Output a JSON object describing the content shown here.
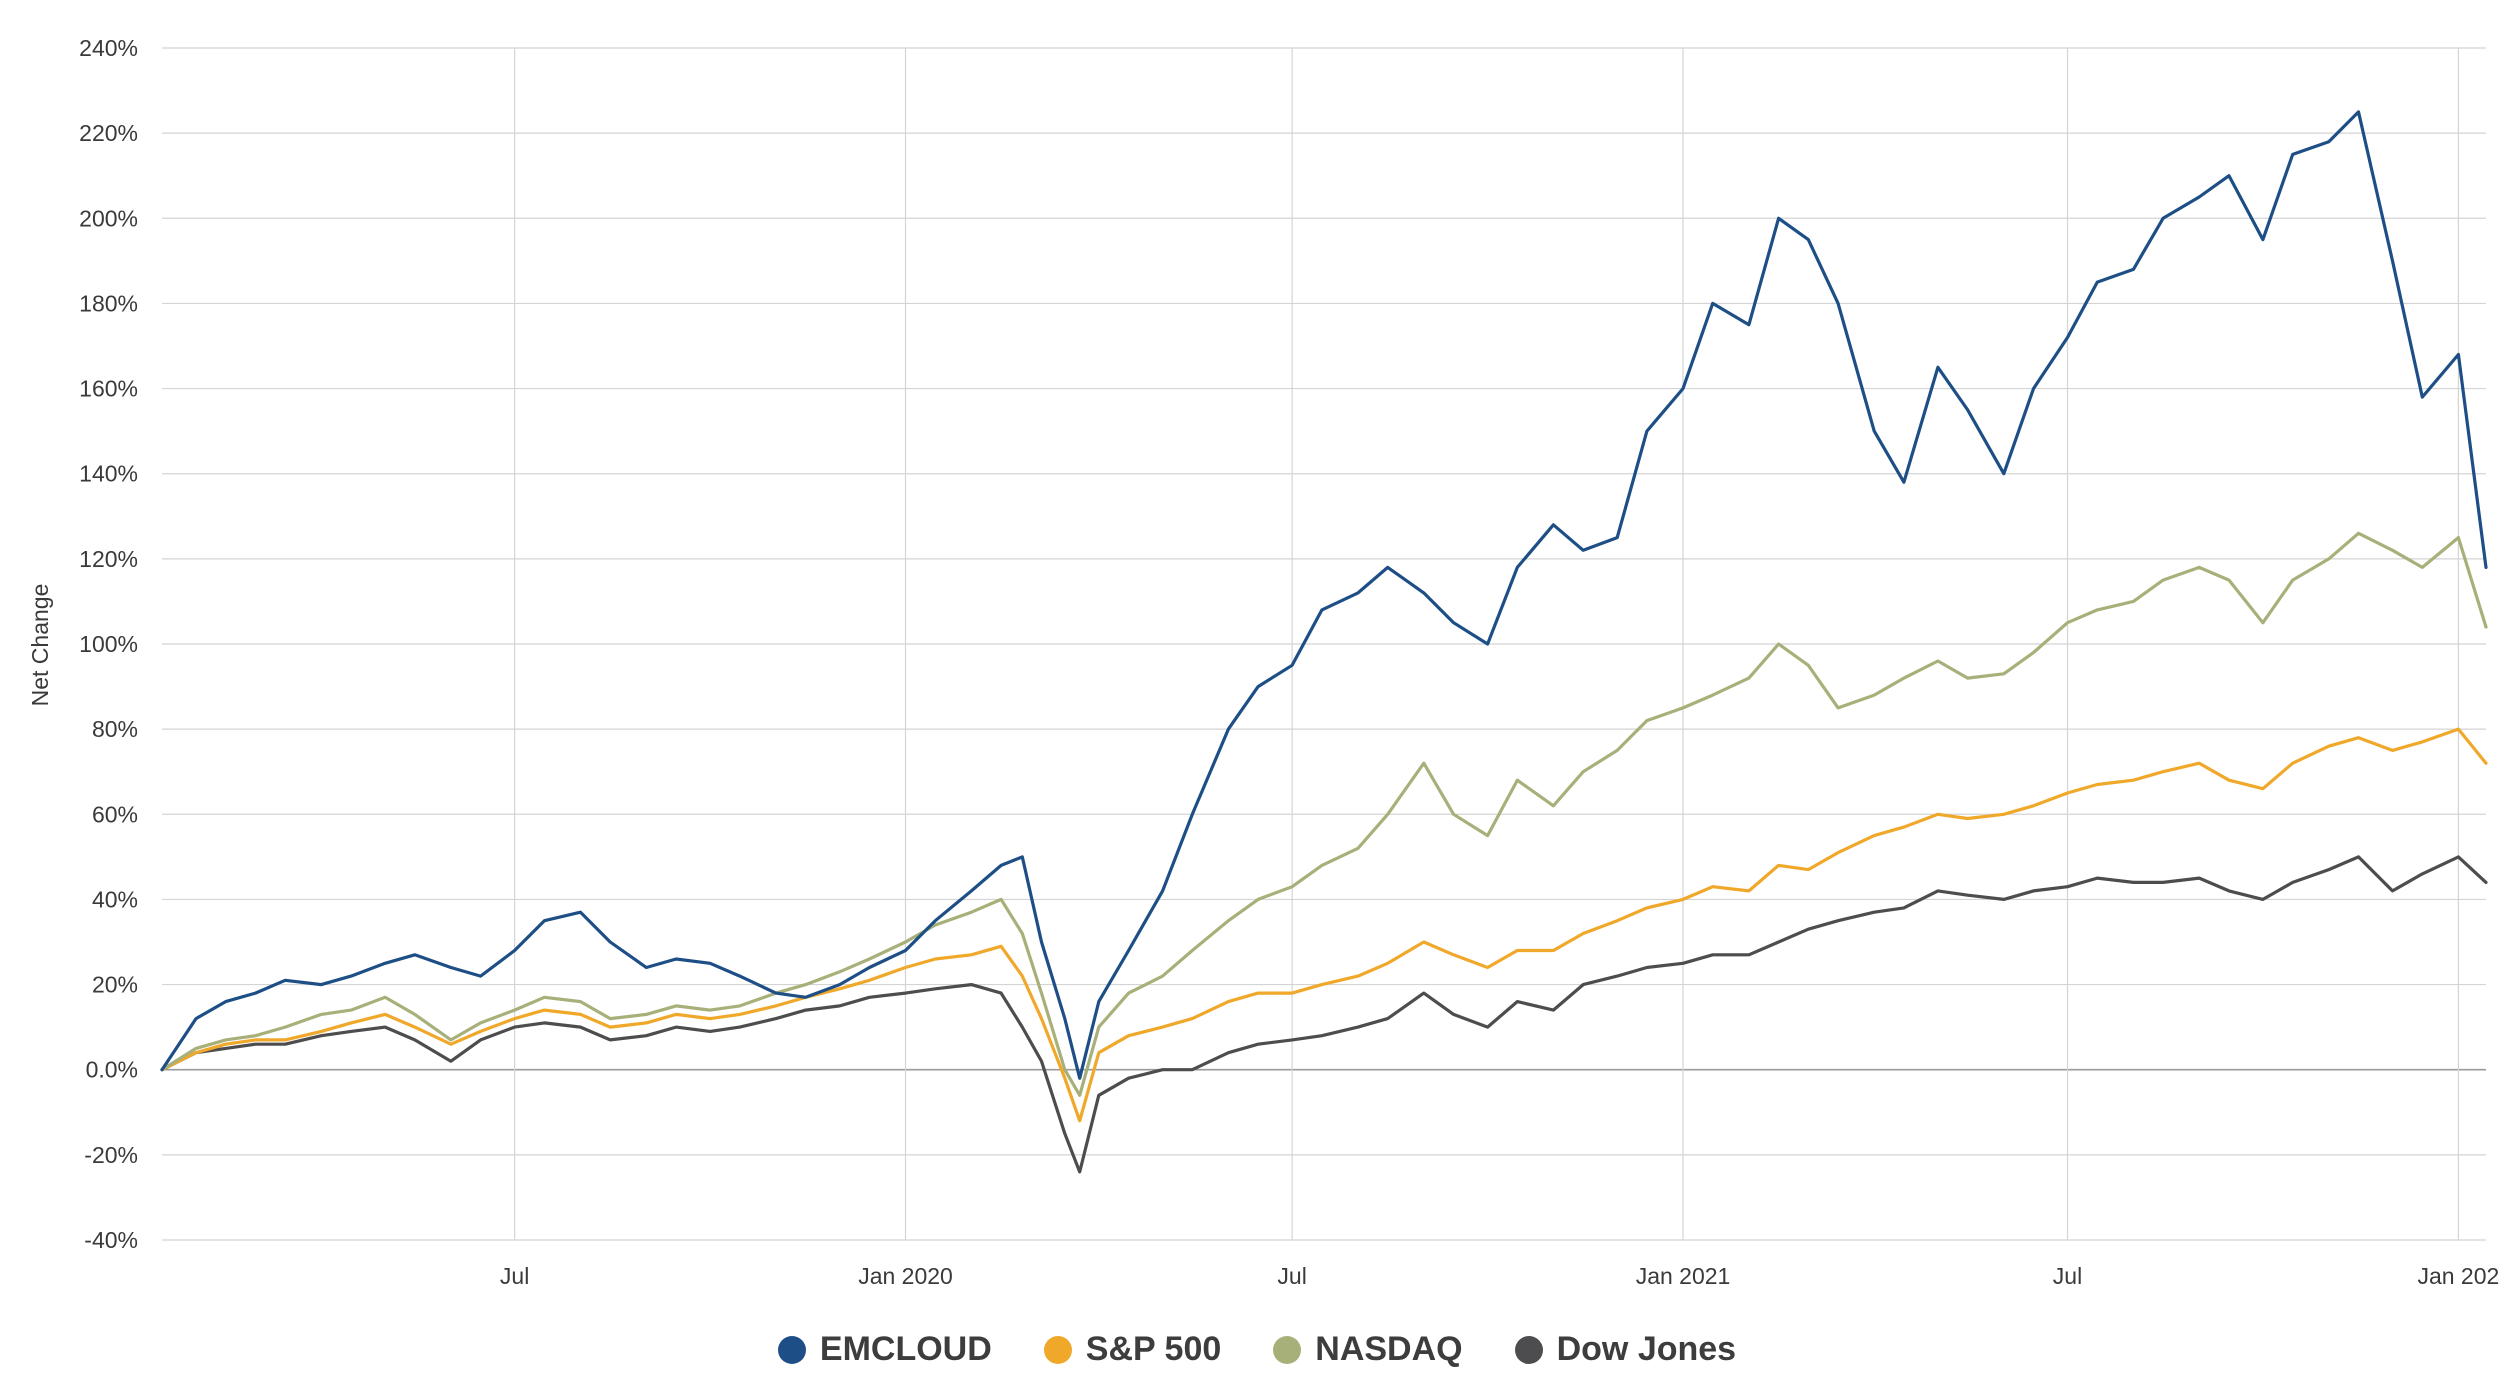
{
  "chart_data": {
    "type": "line",
    "ylabel": "Net Change",
    "xlabel": "",
    "ylim": [
      -40,
      240
    ],
    "y_ticks": [
      "240%",
      "220%",
      "200%",
      "180%",
      "160%",
      "140%",
      "120%",
      "100%",
      "80%",
      "60%",
      "40%",
      "20%",
      "0.0%",
      "-20%",
      "-40%"
    ],
    "x_ticks": [
      "Jul",
      "Jan 2020",
      "Jul",
      "Jan 2021",
      "Jul",
      "Jan 202"
    ],
    "x_tick_dates": [
      "2019-07-01",
      "2020-01-01",
      "2020-07-01",
      "2021-01-01",
      "2021-07-01",
      "2022-01-01"
    ],
    "x_range": [
      "2019-01-16",
      "2022-01-14"
    ],
    "grid": true,
    "legend_position": "bottom",
    "series": [
      {
        "name": "EMCLOUD",
        "color": "#1d4f86",
        "x": [
          "2019-01-16",
          "2019-02-01",
          "2019-02-15",
          "2019-03-01",
          "2019-03-15",
          "2019-04-01",
          "2019-04-15",
          "2019-05-01",
          "2019-05-15",
          "2019-06-01",
          "2019-06-15",
          "2019-07-01",
          "2019-07-15",
          "2019-08-01",
          "2019-08-15",
          "2019-09-01",
          "2019-09-15",
          "2019-10-01",
          "2019-10-15",
          "2019-11-01",
          "2019-11-15",
          "2019-12-01",
          "2019-12-15",
          "2020-01-01",
          "2020-01-15",
          "2020-02-01",
          "2020-02-15",
          "2020-02-25",
          "2020-03-05",
          "2020-03-16",
          "2020-03-23",
          "2020-04-01",
          "2020-04-15",
          "2020-05-01",
          "2020-05-15",
          "2020-06-01",
          "2020-06-15",
          "2020-07-01",
          "2020-07-15",
          "2020-08-01",
          "2020-08-15",
          "2020-09-01",
          "2020-09-15",
          "2020-10-01",
          "2020-10-15",
          "2020-11-01",
          "2020-11-15",
          "2020-12-01",
          "2020-12-15",
          "2021-01-01",
          "2021-01-15",
          "2021-02-01",
          "2021-02-15",
          "2021-03-01",
          "2021-03-15",
          "2021-04-01",
          "2021-04-15",
          "2021-05-01",
          "2021-05-15",
          "2021-06-01",
          "2021-06-15",
          "2021-07-01",
          "2021-07-15",
          "2021-08-01",
          "2021-08-15",
          "2021-09-01",
          "2021-09-15",
          "2021-10-01",
          "2021-10-15",
          "2021-11-01",
          "2021-11-15",
          "2021-12-01",
          "2021-12-15",
          "2022-01-01",
          "2022-01-14"
        ],
        "values": [
          0,
          12,
          16,
          18,
          21,
          20,
          22,
          25,
          27,
          24,
          22,
          28,
          35,
          37,
          30,
          24,
          26,
          25,
          22,
          18,
          17,
          20,
          24,
          28,
          35,
          42,
          48,
          50,
          30,
          12,
          -2,
          16,
          28,
          42,
          60,
          80,
          90,
          95,
          108,
          112,
          118,
          112,
          105,
          100,
          118,
          128,
          122,
          125,
          150,
          160,
          180,
          175,
          200,
          195,
          180,
          150,
          138,
          165,
          155,
          140,
          160,
          172,
          185,
          188,
          200,
          205,
          210,
          195,
          215,
          218,
          225,
          190,
          158,
          168,
          118
        ]
      },
      {
        "name": "S&P 500",
        "color": "#f0a82a",
        "x": [
          "2019-01-16",
          "2019-02-01",
          "2019-02-15",
          "2019-03-01",
          "2019-03-15",
          "2019-04-01",
          "2019-04-15",
          "2019-05-01",
          "2019-05-15",
          "2019-06-01",
          "2019-06-15",
          "2019-07-01",
          "2019-07-15",
          "2019-08-01",
          "2019-08-15",
          "2019-09-01",
          "2019-09-15",
          "2019-10-01",
          "2019-10-15",
          "2019-11-01",
          "2019-11-15",
          "2019-12-01",
          "2019-12-15",
          "2020-01-01",
          "2020-01-15",
          "2020-02-01",
          "2020-02-15",
          "2020-02-25",
          "2020-03-05",
          "2020-03-16",
          "2020-03-23",
          "2020-04-01",
          "2020-04-15",
          "2020-05-01",
          "2020-05-15",
          "2020-06-01",
          "2020-06-15",
          "2020-07-01",
          "2020-07-15",
          "2020-08-01",
          "2020-08-15",
          "2020-09-01",
          "2020-09-15",
          "2020-10-01",
          "2020-10-15",
          "2020-11-01",
          "2020-11-15",
          "2020-12-01",
          "2020-12-15",
          "2021-01-01",
          "2021-01-15",
          "2021-02-01",
          "2021-02-15",
          "2021-03-01",
          "2021-03-15",
          "2021-04-01",
          "2021-04-15",
          "2021-05-01",
          "2021-05-15",
          "2021-06-01",
          "2021-06-15",
          "2021-07-01",
          "2021-07-15",
          "2021-08-01",
          "2021-08-15",
          "2021-09-01",
          "2021-09-15",
          "2021-10-01",
          "2021-10-15",
          "2021-11-01",
          "2021-11-15",
          "2021-12-01",
          "2021-12-15",
          "2022-01-01",
          "2022-01-14"
        ],
        "values": [
          0,
          4,
          6,
          7,
          7,
          9,
          11,
          13,
          10,
          6,
          9,
          12,
          14,
          13,
          10,
          11,
          13,
          12,
          13,
          15,
          17,
          19,
          21,
          24,
          26,
          27,
          29,
          22,
          12,
          -2,
          -12,
          4,
          8,
          10,
          12,
          16,
          18,
          18,
          20,
          22,
          25,
          30,
          27,
          24,
          28,
          28,
          32,
          35,
          38,
          40,
          43,
          42,
          48,
          47,
          51,
          55,
          57,
          60,
          59,
          60,
          62,
          65,
          67,
          68,
          70,
          72,
          68,
          66,
          72,
          76,
          78,
          75,
          77,
          80,
          72
        ]
      },
      {
        "name": "NASDAQ",
        "color": "#a8b07a",
        "x": [
          "2019-01-16",
          "2019-02-01",
          "2019-02-15",
          "2019-03-01",
          "2019-03-15",
          "2019-04-01",
          "2019-04-15",
          "2019-05-01",
          "2019-05-15",
          "2019-06-01",
          "2019-06-15",
          "2019-07-01",
          "2019-07-15",
          "2019-08-01",
          "2019-08-15",
          "2019-09-01",
          "2019-09-15",
          "2019-10-01",
          "2019-10-15",
          "2019-11-01",
          "2019-11-15",
          "2019-12-01",
          "2019-12-15",
          "2020-01-01",
          "2020-01-15",
          "2020-02-01",
          "2020-02-15",
          "2020-02-25",
          "2020-03-05",
          "2020-03-16",
          "2020-03-23",
          "2020-04-01",
          "2020-04-15",
          "2020-05-01",
          "2020-05-15",
          "2020-06-01",
          "2020-06-15",
          "2020-07-01",
          "2020-07-15",
          "2020-08-01",
          "2020-08-15",
          "2020-09-01",
          "2020-09-15",
          "2020-10-01",
          "2020-10-15",
          "2020-11-01",
          "2020-11-15",
          "2020-12-01",
          "2020-12-15",
          "2021-01-01",
          "2021-01-15",
          "2021-02-01",
          "2021-02-15",
          "2021-03-01",
          "2021-03-15",
          "2021-04-01",
          "2021-04-15",
          "2021-05-01",
          "2021-05-15",
          "2021-06-01",
          "2021-06-15",
          "2021-07-01",
          "2021-07-15",
          "2021-08-01",
          "2021-08-15",
          "2021-09-01",
          "2021-09-15",
          "2021-10-01",
          "2021-10-15",
          "2021-11-01",
          "2021-11-15",
          "2021-12-01",
          "2021-12-15",
          "2022-01-01",
          "2022-01-14"
        ],
        "values": [
          0,
          5,
          7,
          8,
          10,
          13,
          14,
          17,
          13,
          7,
          11,
          14,
          17,
          16,
          12,
          13,
          15,
          14,
          15,
          18,
          20,
          23,
          26,
          30,
          34,
          37,
          40,
          32,
          18,
          0,
          -6,
          10,
          18,
          22,
          28,
          35,
          40,
          43,
          48,
          52,
          60,
          72,
          60,
          55,
          68,
          62,
          70,
          75,
          82,
          85,
          88,
          92,
          100,
          95,
          85,
          88,
          92,
          96,
          92,
          93,
          98,
          105,
          108,
          110,
          115,
          118,
          115,
          105,
          115,
          120,
          126,
          122,
          118,
          125,
          104
        ]
      },
      {
        "name": "Dow Jones",
        "color": "#4d4d4f",
        "x": [
          "2019-01-16",
          "2019-02-01",
          "2019-02-15",
          "2019-03-01",
          "2019-03-15",
          "2019-04-01",
          "2019-04-15",
          "2019-05-01",
          "2019-05-15",
          "2019-06-01",
          "2019-06-15",
          "2019-07-01",
          "2019-07-15",
          "2019-08-01",
          "2019-08-15",
          "2019-09-01",
          "2019-09-15",
          "2019-10-01",
          "2019-10-15",
          "2019-11-01",
          "2019-11-15",
          "2019-12-01",
          "2019-12-15",
          "2020-01-01",
          "2020-01-15",
          "2020-02-01",
          "2020-02-15",
          "2020-02-25",
          "2020-03-05",
          "2020-03-16",
          "2020-03-23",
          "2020-04-01",
          "2020-04-15",
          "2020-05-01",
          "2020-05-15",
          "2020-06-01",
          "2020-06-15",
          "2020-07-01",
          "2020-07-15",
          "2020-08-01",
          "2020-08-15",
          "2020-09-01",
          "2020-09-15",
          "2020-10-01",
          "2020-10-15",
          "2020-11-01",
          "2020-11-15",
          "2020-12-01",
          "2020-12-15",
          "2021-01-01",
          "2021-01-15",
          "2021-02-01",
          "2021-02-15",
          "2021-03-01",
          "2021-03-15",
          "2021-04-01",
          "2021-04-15",
          "2021-05-01",
          "2021-05-15",
          "2021-06-01",
          "2021-06-15",
          "2021-07-01",
          "2021-07-15",
          "2021-08-01",
          "2021-08-15",
          "2021-09-01",
          "2021-09-15",
          "2021-10-01",
          "2021-10-15",
          "2021-11-01",
          "2021-11-15",
          "2021-12-01",
          "2021-12-15",
          "2022-01-01",
          "2022-01-14"
        ],
        "values": [
          0,
          4,
          5,
          6,
          6,
          8,
          9,
          10,
          7,
          2,
          7,
          10,
          11,
          10,
          7,
          8,
          10,
          9,
          10,
          12,
          14,
          15,
          17,
          18,
          19,
          20,
          18,
          10,
          2,
          -15,
          -24,
          -6,
          -2,
          0,
          0,
          4,
          6,
          7,
          8,
          10,
          12,
          18,
          13,
          10,
          16,
          14,
          20,
          22,
          24,
          25,
          27,
          27,
          30,
          33,
          35,
          37,
          38,
          42,
          41,
          40,
          42,
          43,
          45,
          44,
          44,
          45,
          42,
          40,
          44,
          47,
          50,
          42,
          46,
          50,
          44
        ]
      }
    ]
  },
  "legend": [
    {
      "label": "EMCLOUD",
      "color": "#1d4f86"
    },
    {
      "label": "S&P 500",
      "color": "#f0a82a"
    },
    {
      "label": "NASDAQ",
      "color": "#a8b07a"
    },
    {
      "label": "Dow Jones",
      "color": "#4d4d4f"
    }
  ]
}
